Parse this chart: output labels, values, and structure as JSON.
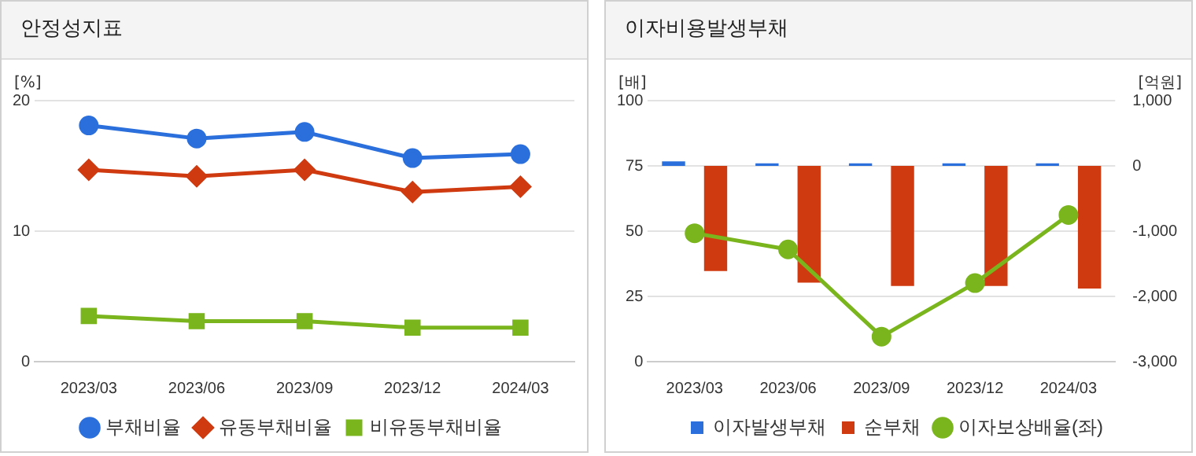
{
  "chart_data": [
    {
      "type": "line",
      "title": "안정성지표",
      "ylabel": "[%]",
      "categories": [
        "2023/03",
        "2023/06",
        "2023/09",
        "2023/12",
        "2024/03"
      ],
      "ylim": [
        0,
        20
      ],
      "yticks": [
        0,
        10,
        20
      ],
      "grid": "y",
      "legend": "bottom",
      "series": [
        {
          "name": "부채비율",
          "color": "#2a6fdb",
          "marker": "circle",
          "values": [
            18.1,
            17.1,
            17.6,
            15.6,
            15.9
          ]
        },
        {
          "name": "유동부채비율",
          "color": "#d03a10",
          "marker": "diamond",
          "values": [
            14.7,
            14.2,
            14.7,
            13.0,
            13.4
          ]
        },
        {
          "name": "비유동부채비율",
          "color": "#7ab51d",
          "marker": "square",
          "values": [
            3.5,
            3.1,
            3.1,
            2.6,
            2.6
          ]
        }
      ]
    },
    {
      "type": "bar",
      "title": "이자비용발생부채",
      "ylabel": "[배]",
      "y2label": "[억원]",
      "categories": [
        "2023/03",
        "2023/06",
        "2023/09",
        "2023/12",
        "2024/03"
      ],
      "ylim": [
        0,
        100
      ],
      "yticks": [
        0,
        25,
        50,
        75,
        100
      ],
      "y2lim": [
        -3000,
        1000
      ],
      "y2ticks": [
        {
          "value": -3000,
          "label": "-3,000"
        },
        {
          "value": -2000,
          "label": "-2,000"
        },
        {
          "value": -1000,
          "label": "-1,000"
        },
        0,
        {
          "value": 1000,
          "label": "1,000"
        }
      ],
      "grid": "y",
      "legend": "bottom",
      "series": [
        {
          "name": "이자발생부채",
          "color": "#2a6fdb",
          "axis": "y2",
          "values": [
            70,
            40,
            40,
            40,
            40
          ]
        },
        {
          "name": "순부채",
          "color": "#d03a10",
          "axis": "y2",
          "values": [
            -1610,
            -1790,
            -1840,
            -1840,
            -1880
          ]
        },
        {
          "name": "이자보상배율(좌)",
          "type": "line",
          "color": "#7ab51d",
          "marker": "circle",
          "values": [
            49.2,
            43.0,
            9.6,
            30.1,
            56.2
          ]
        }
      ]
    }
  ]
}
